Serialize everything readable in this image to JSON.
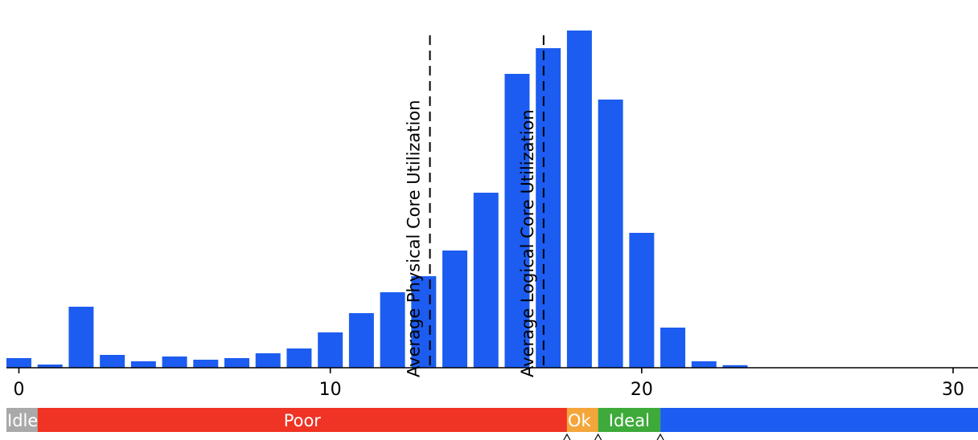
{
  "chart_data": {
    "type": "bar",
    "x": [
      0,
      1,
      2,
      3,
      4,
      5,
      6,
      7,
      8,
      9,
      10,
      11,
      12,
      13,
      14,
      15,
      16,
      17,
      18,
      19,
      20,
      21,
      22,
      23
    ],
    "values": [
      3.0,
      1.0,
      19.0,
      4.0,
      2.0,
      3.5,
      2.5,
      3.0,
      4.5,
      6.0,
      11.0,
      17.0,
      23.5,
      28.5,
      36.5,
      54.5,
      91.5,
      99.5,
      105.0,
      83.5,
      42.0,
      12.5,
      2.0,
      0.8
    ],
    "xlim": [
      -0.4,
      30.8
    ],
    "ylim": [
      0,
      107
    ],
    "xticks": [
      0,
      10,
      20,
      30
    ],
    "bar_color": "#1c5cf0",
    "reference_lines": [
      {
        "label": "Average Physical Core Utilization",
        "x": 13.2
      },
      {
        "label": "Average Logical Core Utilization",
        "x": 16.85
      }
    ],
    "bands": [
      {
        "label": "Idle",
        "start": -0.4,
        "end": 0.6,
        "color": "#a9a9a9"
      },
      {
        "label": "Poor",
        "start": 0.6,
        "end": 17.6,
        "color": "#ef3324"
      },
      {
        "label": "Ok",
        "start": 17.6,
        "end": 18.6,
        "color": "#f4a63a"
      },
      {
        "label": "Ideal",
        "start": 18.6,
        "end": 20.6,
        "color": "#3daa3a"
      },
      {
        "label": "",
        "start": 20.6,
        "end": 30.8,
        "color": "#1c5cf0"
      }
    ],
    "grid": false,
    "legend": "none"
  }
}
